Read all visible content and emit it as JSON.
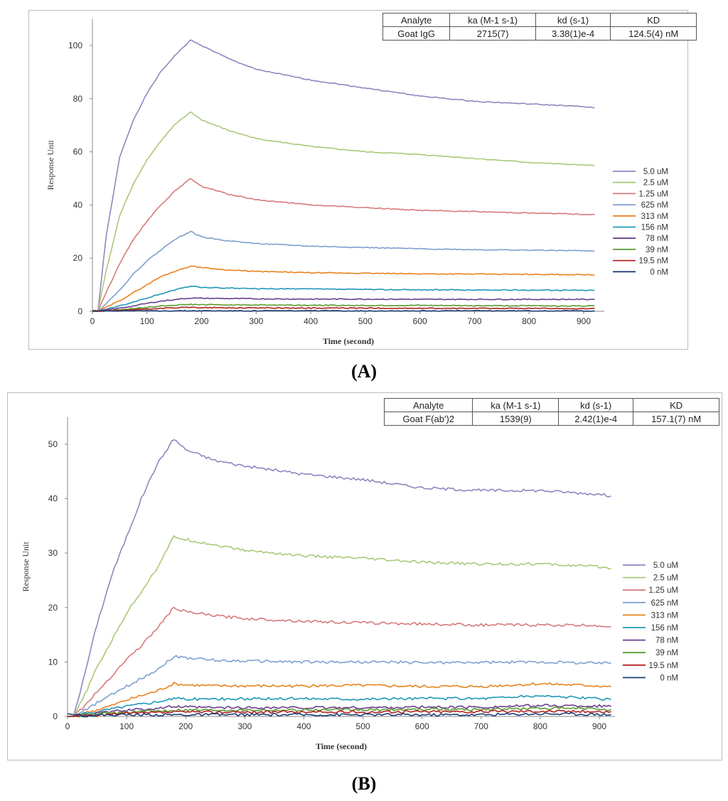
{
  "colors": {
    "5.0 uM": "#8f86c0",
    "2.5 uM": "#a9c97a",
    "1.25 uM": "#d77a7a",
    "625 nM": "#7f9fd0",
    "313 nM": "#e8821e",
    "156 nM": "#1f97b8",
    "78 nM": "#6a3d8f",
    "39 nM": "#5a9a2e",
    "19.5 nM": "#b22222",
    "0 nM": "#1f3f7a"
  },
  "chart_data": [
    {
      "panel": "(A)",
      "type": "line",
      "xlabel": "Time  (second)",
      "ylabel": "Response Unit",
      "xlim": [
        0,
        950
      ],
      "ylim": [
        0,
        110
      ],
      "xticks": [
        0,
        100,
        200,
        300,
        400,
        500,
        600,
        700,
        800,
        900
      ],
      "yticks": [
        0,
        20,
        40,
        60,
        80,
        100
      ],
      "legend_position": "right",
      "grid": false,
      "table": {
        "headers": [
          "Analyte",
          "ka (M-1 s-1)",
          "kd (s-1)",
          "KD"
        ],
        "row": [
          "Goat IgG",
          "2715(7)",
          "3.38(1)e-4",
          "124.5(4) nM"
        ]
      },
      "x": [
        0,
        10,
        25,
        50,
        75,
        100,
        125,
        150,
        180,
        200,
        250,
        300,
        400,
        500,
        600,
        700,
        800,
        900,
        920
      ],
      "series": [
        {
          "name": "5.0 uM",
          "values": [
            0,
            0,
            28,
            58,
            72,
            82,
            90,
            96,
            102,
            100,
            95,
            91,
            87,
            84,
            81,
            79,
            78,
            77,
            76.5
          ]
        },
        {
          "name": "2.5 uM",
          "values": [
            0,
            0,
            15,
            36,
            48,
            57,
            64,
            70,
            75,
            72,
            68,
            65,
            62,
            60,
            59,
            57.5,
            56,
            55,
            54.8
          ]
        },
        {
          "name": "1.25 uM",
          "values": [
            0,
            0,
            7,
            18,
            27,
            34,
            40,
            45,
            50,
            47,
            44,
            42,
            40,
            39,
            38,
            37.5,
            37,
            36.5,
            36.3
          ]
        },
        {
          "name": "625 nM",
          "values": [
            0,
            0,
            3,
            8,
            14,
            19,
            23,
            27,
            30,
            28,
            26.5,
            25.5,
            24.5,
            24,
            23.5,
            23.2,
            23,
            22.8,
            22.7
          ]
        },
        {
          "name": "313 nM",
          "values": [
            0,
            0,
            1.5,
            4,
            7,
            10,
            13,
            15,
            17,
            16.5,
            15.5,
            15,
            14.5,
            14.3,
            14.1,
            14,
            13.9,
            13.8,
            13.7
          ]
        },
        {
          "name": "156 nM",
          "values": [
            0,
            0,
            0.8,
            2,
            3.5,
            5,
            6.5,
            8,
            9.5,
            9,
            8.7,
            8.5,
            8.4,
            8.2,
            8.1,
            8,
            8,
            7.9,
            7.9
          ]
        },
        {
          "name": "78 nM",
          "values": [
            0,
            0,
            0.5,
            1.2,
            2,
            3,
            3.8,
            4.4,
            5,
            4.9,
            4.8,
            4.7,
            4.6,
            4.6,
            4.5,
            4.5,
            4.5,
            4.5,
            4.5
          ]
        },
        {
          "name": "39 nM",
          "values": [
            0,
            0,
            0.2,
            0.6,
            1,
            1.5,
            2,
            2.3,
            2.6,
            2.5,
            2.4,
            2.4,
            2.3,
            2.2,
            2.2,
            2.1,
            2.1,
            2,
            2
          ]
        },
        {
          "name": "19.5 nM",
          "values": [
            0,
            0,
            0.1,
            0.3,
            0.6,
            0.9,
            1.1,
            1.3,
            1.5,
            1.4,
            1.3,
            1.3,
            1.2,
            1.2,
            1.1,
            1.1,
            1.1,
            1,
            1
          ]
        },
        {
          "name": "0 nM",
          "values": [
            0.3,
            0.2,
            0.2,
            0.2,
            0.2,
            0.2,
            0.2,
            0.2,
            0.2,
            0.2,
            0.2,
            0.2,
            0.2,
            0.2,
            0.2,
            0.2,
            0.2,
            0.2,
            0.2
          ]
        }
      ]
    },
    {
      "panel": "(B)",
      "type": "line",
      "xlabel": "Time (second)",
      "ylabel": "Response Unit",
      "xlim": [
        0,
        930
      ],
      "ylim": [
        0,
        55
      ],
      "xticks": [
        0,
        100,
        200,
        300,
        400,
        500,
        600,
        700,
        800,
        900
      ],
      "yticks": [
        0,
        10,
        20,
        30,
        40,
        50
      ],
      "legend_position": "right",
      "grid": false,
      "table": {
        "headers": [
          "Analyte",
          "ka (M-1 s-1)",
          "kd (s-1)",
          "KD"
        ],
        "row": [
          "Goat F(ab')2",
          "1539(9)",
          "2.42(1)e-4",
          "157.1(7) nM"
        ]
      },
      "x": [
        0,
        10,
        25,
        50,
        75,
        100,
        125,
        150,
        180,
        200,
        250,
        300,
        400,
        500,
        600,
        700,
        800,
        900,
        920
      ],
      "series": [
        {
          "name": "5.0 uM",
          "values": [
            0,
            0,
            6,
            17,
            26,
            33,
            40,
            46,
            51,
            49,
            47,
            46,
            44.5,
            43.5,
            42,
            41.5,
            41.5,
            40.8,
            40.5
          ]
        },
        {
          "name": "2.5 uM",
          "values": [
            0,
            0,
            3,
            9,
            14,
            19,
            23,
            27,
            33,
            32.5,
            31.5,
            30.5,
            29.5,
            29,
            28.3,
            28,
            28,
            27.5,
            27.2
          ]
        },
        {
          "name": "1.25 uM",
          "values": [
            0,
            0,
            1.5,
            4.5,
            7.5,
            10.5,
            13,
            16,
            20,
            19.2,
            18.5,
            18,
            17.5,
            17.2,
            17,
            16.8,
            16.8,
            16.7,
            16.5
          ]
        },
        {
          "name": "625 nM",
          "values": [
            0,
            0,
            0.8,
            2.5,
            4,
            5.5,
            7,
            8.5,
            11,
            10.8,
            10.3,
            10.2,
            10,
            10,
            9.9,
            9.9,
            10,
            9.8,
            9.8
          ]
        },
        {
          "name": "313 nM",
          "values": [
            0,
            0,
            0.5,
            1.2,
            2,
            3,
            3.8,
            4.6,
            6,
            5.8,
            5.6,
            5.6,
            5.6,
            5.7,
            5.5,
            5.5,
            6,
            5.6,
            5.5
          ]
        },
        {
          "name": "156 nM",
          "values": [
            0,
            0,
            0.4,
            0.9,
            1.4,
            1.9,
            2.3,
            2.7,
            3.3,
            3.2,
            3.2,
            3.2,
            3.3,
            3.2,
            3.3,
            3.3,
            3.8,
            3.2,
            3.1
          ]
        },
        {
          "name": "78 nM",
          "values": [
            0,
            0,
            0.3,
            0.6,
            0.9,
            1.1,
            1.3,
            1.5,
            1.8,
            1.7,
            1.6,
            1.6,
            1.6,
            1.6,
            1.7,
            1.7,
            2,
            1.9,
            1.8
          ]
        },
        {
          "name": "39 nM",
          "values": [
            0,
            0,
            0.2,
            0.4,
            0.6,
            0.8,
            0.9,
            1,
            1.2,
            1.2,
            1.2,
            1.2,
            1.2,
            1.2,
            1.3,
            1.3,
            1.5,
            1.4,
            1.3
          ]
        },
        {
          "name": "19.5 nM",
          "values": [
            0,
            0,
            0.1,
            0.2,
            0.4,
            0.5,
            0.6,
            0.7,
            0.8,
            0.8,
            0.8,
            0.8,
            0.8,
            0.8,
            0.9,
            0.9,
            1,
            0.9,
            0.9
          ]
        },
        {
          "name": "0 nM",
          "values": [
            0.5,
            0.3,
            0.2,
            0.2,
            0.3,
            0.3,
            0.3,
            0.3,
            0.3,
            0.3,
            0.3,
            0.3,
            0.3,
            0.3,
            0.3,
            0.3,
            0.5,
            0.4,
            0.3
          ]
        }
      ]
    }
  ]
}
